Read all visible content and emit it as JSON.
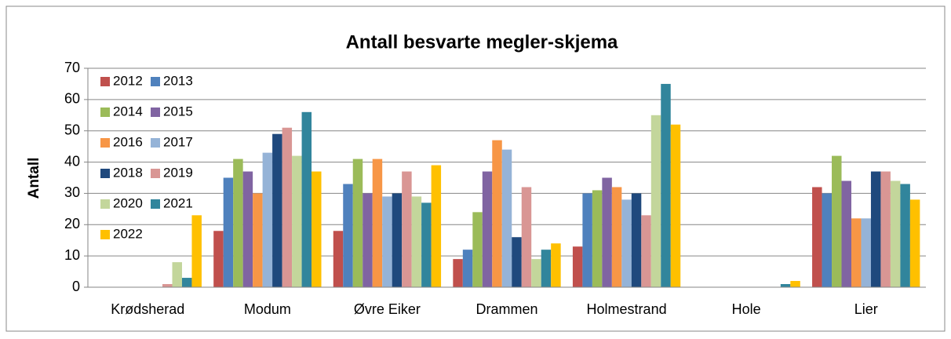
{
  "chart_data": {
    "type": "bar",
    "title": "Antall besvarte megler-skjema",
    "y_label": "Antall",
    "categories": [
      "Krødsherad",
      "Modum",
      "Øvre Eiker",
      "Drammen",
      "Holmestrand",
      "Hole",
      "Lier"
    ],
    "series": [
      {
        "name": "2012",
        "color": "#c0504d",
        "values": [
          0,
          18,
          18,
          9,
          13,
          0,
          32
        ]
      },
      {
        "name": "2013",
        "color": "#4f81bd",
        "values": [
          0,
          35,
          33,
          12,
          30,
          0,
          30
        ]
      },
      {
        "name": "2014",
        "color": "#9bbb59",
        "values": [
          0,
          41,
          41,
          24,
          31,
          0,
          42
        ]
      },
      {
        "name": "2015",
        "color": "#8064a2",
        "values": [
          0,
          37,
          30,
          37,
          35,
          0,
          34
        ]
      },
      {
        "name": "2016",
        "color": "#f79646",
        "values": [
          0,
          30,
          41,
          47,
          32,
          0,
          22
        ]
      },
      {
        "name": "2017",
        "color": "#95b3d7",
        "values": [
          0,
          43,
          29,
          44,
          28,
          0,
          22
        ]
      },
      {
        "name": "2018",
        "color": "#1f497d",
        "values": [
          0,
          49,
          30,
          16,
          30,
          0,
          37
        ]
      },
      {
        "name": "2019",
        "color": "#d99694",
        "values": [
          1,
          51,
          37,
          32,
          23,
          0,
          37
        ]
      },
      {
        "name": "2020",
        "color": "#c3d69b",
        "values": [
          8,
          42,
          29,
          9,
          55,
          0,
          34
        ]
      },
      {
        "name": "2021",
        "color": "#31859c",
        "values": [
          3,
          56,
          27,
          12,
          65,
          1,
          33
        ]
      },
      {
        "name": "2022",
        "color": "#ffc000",
        "values": [
          23,
          37,
          39,
          14,
          52,
          2,
          28
        ]
      }
    ],
    "ylim": [
      0,
      70
    ],
    "yticks": [
      0,
      10,
      20,
      30,
      40,
      50,
      60,
      70
    ],
    "grid": true,
    "legend": "top-left"
  }
}
